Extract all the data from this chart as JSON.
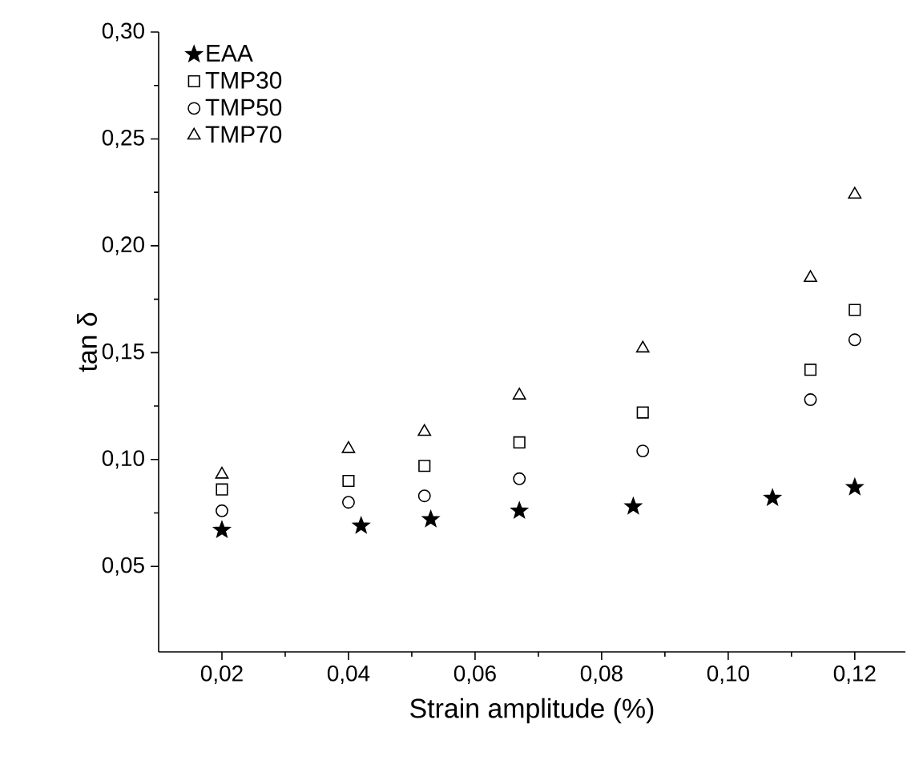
{
  "chart_data": {
    "type": "scatter",
    "xlabel": "Strain amplitude (%)",
    "ylabel": "tan δ",
    "xlim": [
      0.01,
      0.128
    ],
    "ylim": [
      0.01,
      0.3
    ],
    "xticks": [
      {
        "value": 0.02,
        "label": "0,02"
      },
      {
        "value": 0.04,
        "label": "0,04"
      },
      {
        "value": 0.06,
        "label": "0,06"
      },
      {
        "value": 0.08,
        "label": "0,08"
      },
      {
        "value": 0.1,
        "label": "0,10"
      },
      {
        "value": 0.12,
        "label": "0,12"
      }
    ],
    "yticks": [
      {
        "value": 0.05,
        "label": "0,05"
      },
      {
        "value": 0.1,
        "label": "0,10"
      },
      {
        "value": 0.15,
        "label": "0,15"
      },
      {
        "value": 0.2,
        "label": "0,20"
      },
      {
        "value": 0.25,
        "label": "0,25"
      },
      {
        "value": 0.3,
        "label": "0,30"
      }
    ],
    "grid": false,
    "legend": "top left",
    "series": [
      {
        "name": "EAA",
        "color": "#000000",
        "marker": "star",
        "x": [
          0.02,
          0.042,
          0.053,
          0.067,
          0.085,
          0.107,
          0.12
        ],
        "values": [
          0.067,
          0.069,
          0.072,
          0.076,
          0.078,
          0.082,
          0.087
        ]
      },
      {
        "name": "TMP30",
        "color": "#000000",
        "marker": "square",
        "x": [
          0.02,
          0.04,
          0.052,
          0.067,
          0.0865,
          0.113,
          0.12
        ],
        "values": [
          0.086,
          0.09,
          0.097,
          0.108,
          0.122,
          0.142,
          0.17
        ]
      },
      {
        "name": "TMP50",
        "color": "#000000",
        "marker": "circle",
        "x": [
          0.02,
          0.04,
          0.052,
          0.067,
          0.0865,
          0.113,
          0.12
        ],
        "values": [
          0.076,
          0.08,
          0.083,
          0.091,
          0.104,
          0.128,
          0.156
        ]
      },
      {
        "name": "TMP70",
        "color": "#000000",
        "marker": "triangle",
        "x": [
          0.02,
          0.04,
          0.052,
          0.067,
          0.0865,
          0.113,
          0.12
        ],
        "values": [
          0.093,
          0.105,
          0.113,
          0.13,
          0.152,
          0.185,
          0.224
        ]
      }
    ]
  }
}
